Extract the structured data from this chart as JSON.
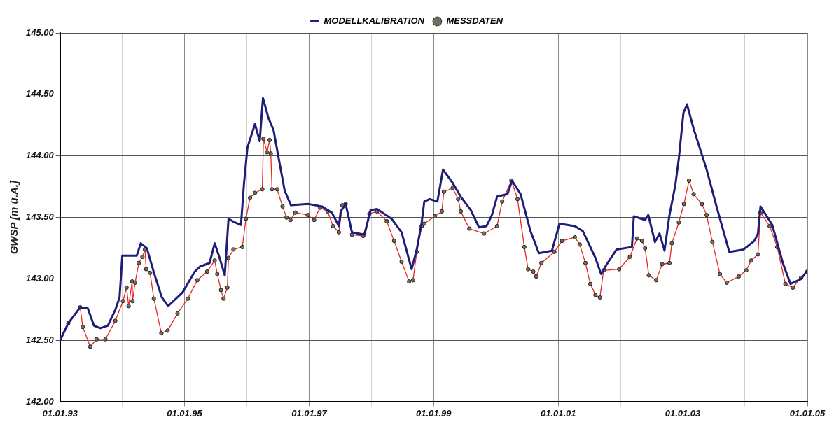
{
  "chart_data": {
    "type": "line",
    "ylabel": "GWSP [m ü.A.]",
    "legend": "top",
    "grid": true,
    "xlim": [
      "1993-01-01",
      "2005-01-01"
    ],
    "xticks": [
      {
        "value": "1993-01-01",
        "label": "01.01.93"
      },
      {
        "value": "1994-01-01",
        "label": null
      },
      {
        "value": "1995-01-01",
        "label": "01.01.95"
      },
      {
        "value": "1996-01-01",
        "label": null
      },
      {
        "value": "1997-01-01",
        "label": "01.01.97"
      },
      {
        "value": "1998-01-01",
        "label": null
      },
      {
        "value": "1999-01-01",
        "label": "01.01.99"
      },
      {
        "value": "2000-01-01",
        "label": null
      },
      {
        "value": "2001-01-01",
        "label": "01.01.01"
      },
      {
        "value": "2002-01-01",
        "label": null
      },
      {
        "value": "2003-01-01",
        "label": "01.01.03"
      },
      {
        "value": "2004-01-01",
        "label": null
      },
      {
        "value": "2005-01-01",
        "label": "01.01.05"
      }
    ],
    "ylim": [
      142,
      145
    ],
    "yticks": [
      {
        "value": 142,
        "label": "142.00"
      },
      {
        "value": 142.5,
        "label": "142.50"
      },
      {
        "value": 143,
        "label": "143.00"
      },
      {
        "value": 143.5,
        "label": "143.50"
      },
      {
        "value": 144,
        "label": "144.00"
      },
      {
        "value": 144.5,
        "label": "144.50"
      },
      {
        "value": 145,
        "label": "145.00"
      }
    ],
    "series": [
      {
        "name": "MODELLKALIBRATION",
        "color": "#1e1e78",
        "marker": "none",
        "line_style": "solid",
        "x": [
          "1993-01-01",
          "1993-02-18",
          "1993-04-29",
          "1993-06-13",
          "1993-07-19",
          "1993-08-25",
          "1993-10-08",
          "1993-11-21",
          "1993-12-16",
          "1994-01-01",
          "1994-03-27",
          "1994-04-19",
          "1994-05-25",
          "1994-07-08",
          "1994-08-21",
          "1994-09-27",
          "1994-12-20",
          "1995-03-02",
          "1995-04-01",
          "1995-05-28",
          "1995-06-27",
          "1995-07-26",
          "1995-08-25",
          "1995-09-16",
          "1995-10-23",
          "1995-11-28",
          "1995-12-16",
          "1996-01-05",
          "1996-01-26",
          "1996-02-18",
          "1996-03-17",
          "1996-04-05",
          "1996-05-07",
          "1996-06-06",
          "1996-07-05",
          "1996-08-10",
          "1996-09-16",
          "1996-12-27",
          "1997-03-17",
          "1997-05-14",
          "1997-06-24",
          "1997-07-05",
          "1997-08-03",
          "1997-09-09",
          "1997-11-21",
          "1997-12-27",
          "1998-02-03",
          "1998-04-29",
          "1998-06-27",
          "1998-08-25",
          "1998-09-24",
          "1998-10-23",
          "1998-11-07",
          "1998-12-09",
          "1999-01-23",
          "1999-02-25",
          "1999-04-23",
          "1999-06-09",
          "1999-08-07",
          "1999-09-24",
          "1999-11-07",
          "1999-12-09",
          "2000-01-08",
          "2000-03-09",
          "2000-04-05",
          "2000-05-25",
          "2000-07-22",
          "2000-09-09",
          "2000-11-25",
          "2001-01-08",
          "2001-04-08",
          "2001-05-25",
          "2001-08-07",
          "2001-09-09",
          "2001-10-08",
          "2001-12-09",
          "2002-03-09",
          "2002-03-20",
          "2002-05-25",
          "2002-06-13",
          "2002-07-22",
          "2002-08-18",
          "2002-09-16",
          "2002-10-15",
          "2002-11-18",
          "2002-12-09",
          "2003-01-05",
          "2003-01-26",
          "2003-03-06",
          "2003-05-21",
          "2003-07-22",
          "2003-10-01",
          "2003-12-24",
          "2004-02-25",
          "2004-03-17",
          "2004-04-01",
          "2004-06-09",
          "2004-08-10",
          "2004-09-24",
          "2004-11-25",
          "2005-01-01"
        ],
        "values": [
          142.5,
          142.64,
          142.77,
          142.76,
          142.62,
          142.6,
          142.62,
          142.75,
          142.85,
          143.19,
          143.19,
          143.29,
          143.25,
          143.04,
          142.85,
          142.78,
          142.89,
          143.06,
          143.1,
          143.13,
          143.29,
          143.17,
          143.03,
          143.49,
          143.46,
          143.44,
          143.78,
          144.07,
          144.16,
          144.26,
          144.12,
          144.47,
          144.31,
          144.21,
          143.99,
          143.72,
          143.6,
          143.61,
          143.59,
          143.54,
          143.43,
          143.55,
          143.61,
          143.38,
          143.36,
          143.56,
          143.57,
          143.49,
          143.38,
          143.08,
          143.24,
          143.46,
          143.63,
          143.65,
          143.63,
          143.89,
          143.78,
          143.67,
          143.56,
          143.42,
          143.43,
          143.52,
          143.67,
          143.69,
          143.8,
          143.69,
          143.39,
          143.21,
          143.23,
          143.45,
          143.43,
          143.39,
          143.17,
          143.04,
          143.11,
          143.24,
          143.26,
          143.51,
          143.48,
          143.52,
          143.3,
          143.37,
          143.23,
          143.52,
          143.76,
          143.98,
          144.35,
          144.42,
          144.22,
          143.89,
          143.57,
          143.22,
          143.24,
          143.31,
          143.37,
          143.59,
          143.44,
          143.13,
          142.96,
          143,
          143.07
        ]
      },
      {
        "name": "MESSDATEN",
        "color": "#e8281e",
        "marker": "circle",
        "line_style": "solid",
        "x": [
          "1993-01-01",
          "1993-02-18",
          "1993-04-29",
          "1993-05-14",
          "1993-06-27",
          "1993-08-03",
          "1993-09-24",
          "1993-11-21",
          "1994-01-05",
          "1994-01-26",
          "1994-02-07",
          "1994-02-28",
          "1994-03-02",
          "1994-03-17",
          "1994-04-08",
          "1994-04-29",
          "1994-05-14",
          "1994-05-21",
          "1994-06-13",
          "1994-07-05",
          "1994-08-18",
          "1994-09-24",
          "1994-11-21",
          "1995-01-20",
          "1995-03-17",
          "1995-05-14",
          "1995-06-27",
          "1995-07-12",
          "1995-08-03",
          "1995-08-18",
          "1995-09-09",
          "1995-09-16",
          "1995-10-15",
          "1995-12-06",
          "1995-12-27",
          "1996-01-20",
          "1996-02-18",
          "1996-04-01",
          "1996-04-08",
          "1996-04-29",
          "1996-05-14",
          "1996-05-21",
          "1996-05-28",
          "1996-06-27",
          "1996-07-29",
          "1996-08-21",
          "1996-09-13",
          "1996-10-12",
          "1996-12-24",
          "1997-01-30",
          "1997-03-06",
          "1997-04-19",
          "1997-05-21",
          "1997-06-24",
          "1997-07-15",
          "1997-08-03",
          "1997-09-09",
          "1997-11-14",
          "1997-12-20",
          "1998-02-03",
          "1998-04-01",
          "1998-05-14",
          "1998-06-27",
          "1998-08-10",
          "1998-09-02",
          "1998-09-24",
          "1998-10-23",
          "1998-11-07",
          "1999-01-08",
          "1999-02-18",
          "1999-03-02",
          "1999-04-23",
          "1999-05-25",
          "1999-06-09",
          "1999-07-29",
          "1999-10-23",
          "2000-01-08",
          "2000-02-07",
          "2000-04-01",
          "2000-05-07",
          "2000-06-16",
          "2000-07-08",
          "2000-08-07",
          "2000-08-25",
          "2000-09-24",
          "2000-12-09",
          "2001-01-23",
          "2001-04-08",
          "2001-05-07",
          "2001-06-09",
          "2001-07-08",
          "2001-08-07",
          "2001-09-02",
          "2001-09-24",
          "2001-12-24",
          "2002-02-25",
          "2002-04-08",
          "2002-05-07",
          "2002-05-25",
          "2002-06-16",
          "2002-07-29",
          "2002-09-02",
          "2002-10-15",
          "2002-10-29",
          "2002-12-09",
          "2003-01-08",
          "2003-02-07",
          "2003-03-06",
          "2003-04-23",
          "2003-05-21",
          "2003-06-24",
          "2003-08-07",
          "2003-09-16",
          "2003-11-25",
          "2004-01-08",
          "2004-02-07",
          "2004-03-17",
          "2004-04-01",
          "2004-05-25",
          "2004-07-08",
          "2004-08-25",
          "2004-10-08",
          "2004-11-25",
          "2005-01-01"
        ],
        "values": [
          142.52,
          142.64,
          142.77,
          142.61,
          142.45,
          142.51,
          142.51,
          142.66,
          142.82,
          142.93,
          142.78,
          142.98,
          142.82,
          142.97,
          143.13,
          143.18,
          143.24,
          143.08,
          143.05,
          142.84,
          142.56,
          142.58,
          142.72,
          142.84,
          142.99,
          143.06,
          143.15,
          143.04,
          142.91,
          142.84,
          142.93,
          143.17,
          143.24,
          143.26,
          143.49,
          143.66,
          143.7,
          143.73,
          144.14,
          144.03,
          144.13,
          144.02,
          143.73,
          143.73,
          143.59,
          143.5,
          143.48,
          143.54,
          143.52,
          143.48,
          143.58,
          143.55,
          143.43,
          143.38,
          143.6,
          143.61,
          143.36,
          143.35,
          143.53,
          143.55,
          143.47,
          143.31,
          143.14,
          142.98,
          142.99,
          143.22,
          143.43,
          143.45,
          143.51,
          143.55,
          143.71,
          143.74,
          143.65,
          143.55,
          143.41,
          143.37,
          143.43,
          143.63,
          143.8,
          143.65,
          143.26,
          143.08,
          143.06,
          143.02,
          143.13,
          143.22,
          143.31,
          143.34,
          143.28,
          143.13,
          142.96,
          142.87,
          142.85,
          143.07,
          143.08,
          143.18,
          143.33,
          143.31,
          143.25,
          143.03,
          142.99,
          143.12,
          143.13,
          143.29,
          143.46,
          143.61,
          143.8,
          143.69,
          143.61,
          143.52,
          143.3,
          143.04,
          142.97,
          143.02,
          143.07,
          143.15,
          143.2,
          143.54,
          143.43,
          143.26,
          142.96,
          142.93,
          143.01,
          143.06
        ]
      }
    ]
  }
}
